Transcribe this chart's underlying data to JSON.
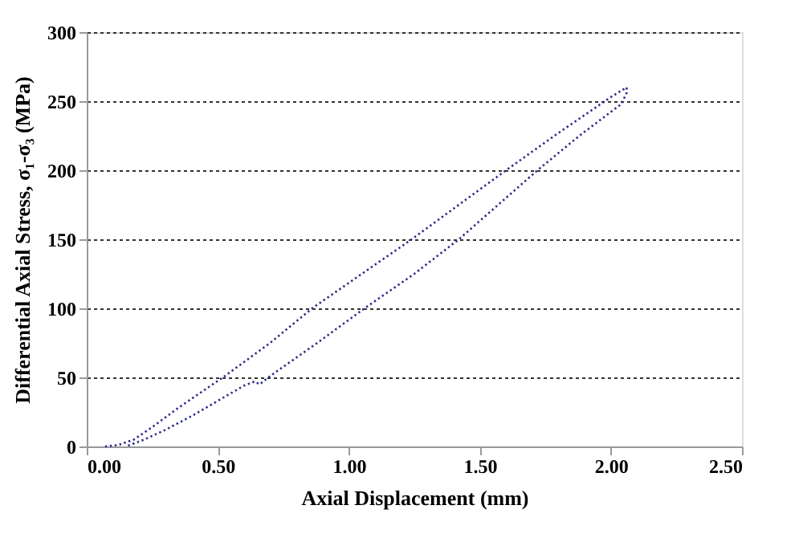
{
  "chart_data": {
    "type": "line",
    "xlabel": "Axial Displacement (mm)",
    "ylabel": "Differential Axial Stress, σ₁-σ₃ (MPa)",
    "xlim": [
      0,
      2.5
    ],
    "xticks": [
      {
        "value": 0,
        "label": "0.00"
      },
      {
        "value": 0.5,
        "label": "0.50"
      },
      {
        "value": 1,
        "label": "1.00"
      },
      {
        "value": 1.5,
        "label": "1.50"
      },
      {
        "value": 2,
        "label": "2.00"
      },
      {
        "value": 2.5,
        "label": "2.50"
      }
    ],
    "ylim": [
      0,
      300
    ],
    "yticks": [
      0,
      50,
      100,
      150,
      200,
      250,
      300
    ],
    "grid": "y",
    "legend": false,
    "marker": "none",
    "line_style": "dotted",
    "series": [
      {
        "color": "#2a2a8a",
        "x": [
          0.07,
          0.12,
          0.18,
          0.25,
          0.35,
          0.45,
          0.52,
          0.7,
          0.86,
          1.05,
          1.24,
          1.42,
          1.6,
          1.8,
          2.0,
          2.06,
          2.06,
          2.04,
          1.88,
          1.72,
          1.57,
          1.42,
          1.25,
          1.06,
          0.88,
          0.7,
          0.66,
          0.64,
          0.6,
          0.5,
          0.4,
          0.3,
          0.22,
          0.15
        ],
        "values": [
          0,
          1,
          5,
          14,
          28,
          41,
          50,
          75,
          100,
          125,
          150,
          175,
          200,
          227,
          253,
          260,
          256,
          248,
          225,
          200,
          175,
          150,
          125,
          100,
          75,
          51,
          45,
          47,
          44,
          33,
          22,
          12,
          5,
          0
        ]
      }
    ]
  }
}
